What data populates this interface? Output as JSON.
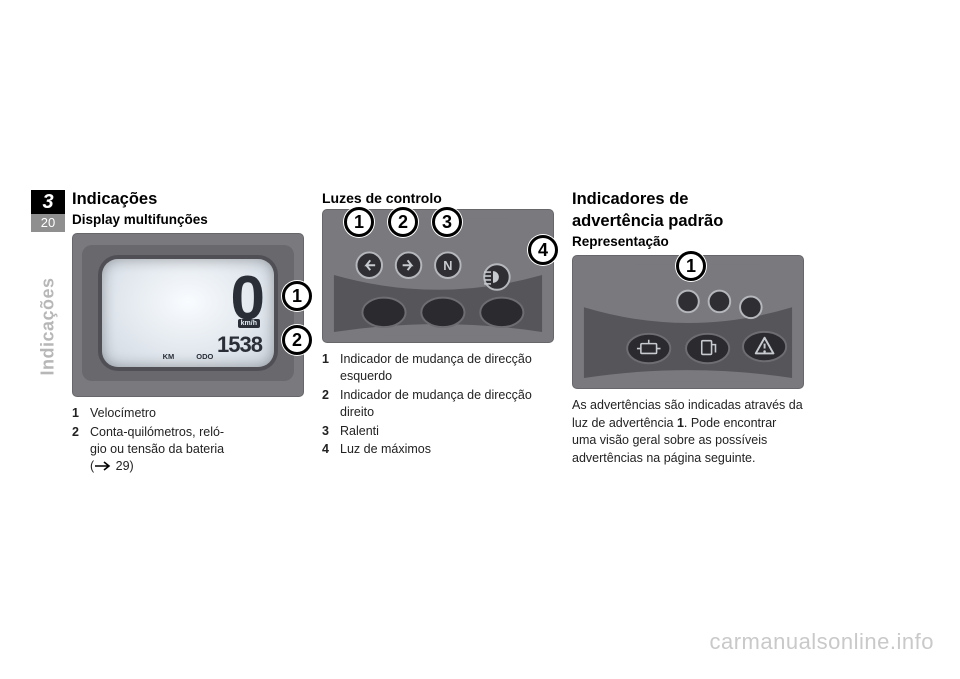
{
  "sidebar": {
    "chapter_number": "3",
    "page_number": "20",
    "rotated_label": "Indicações"
  },
  "col1": {
    "title": "Indicações",
    "subtitle": "Display multifunções",
    "lcd": {
      "big_value": "0",
      "unit_badge": "km/h",
      "small_value": "1538",
      "km_label": "KM",
      "odo_label": "ODO",
      "digit_color": "#2a2f37",
      "bg_inner": "#e9eef5",
      "bg_outer": "#79797e"
    },
    "callouts": {
      "c1": "1",
      "c2": "2"
    },
    "legend": [
      {
        "n": "1",
        "t": "Velocímetro"
      },
      {
        "n": "2",
        "t": "Conta-quilómetros, reló-\ngio ou tensão da bateria\n(         29)"
      }
    ]
  },
  "col2": {
    "title": "Luzes de controlo",
    "callouts": {
      "c1": "1",
      "c2": "2",
      "c3": "3",
      "c4": "4"
    },
    "cluster": {
      "panel_fill": "#626267",
      "panel_dark": "#45454a",
      "ind_fill": "#2d2d31",
      "ind_stroke": "#9b9b9f"
    },
    "legend": [
      {
        "n": "1",
        "t": "Indicador de mudança de direcção esquerdo"
      },
      {
        "n": "2",
        "t": "Indicador de mudança de direcção direito"
      },
      {
        "n": "3",
        "t": "Ralenti"
      },
      {
        "n": "4",
        "t": "Luz de máximos"
      }
    ]
  },
  "col3": {
    "title1": "Indicadores de",
    "title2": "advertência padrão",
    "subtitle": "Representação",
    "callouts": {
      "c1": "1"
    },
    "cluster": {
      "panel_fill": "#626267",
      "panel_dark": "#45454a",
      "ind_fill": "#2d2d31",
      "ind_stroke": "#9b9b9f"
    },
    "body": "As advertências são indicadas através da luz de advertência <b>1</b>. Pode encontrar uma visão geral sobre as possíveis advertências na página seguinte."
  },
  "watermark": "carmanualsonline.info"
}
